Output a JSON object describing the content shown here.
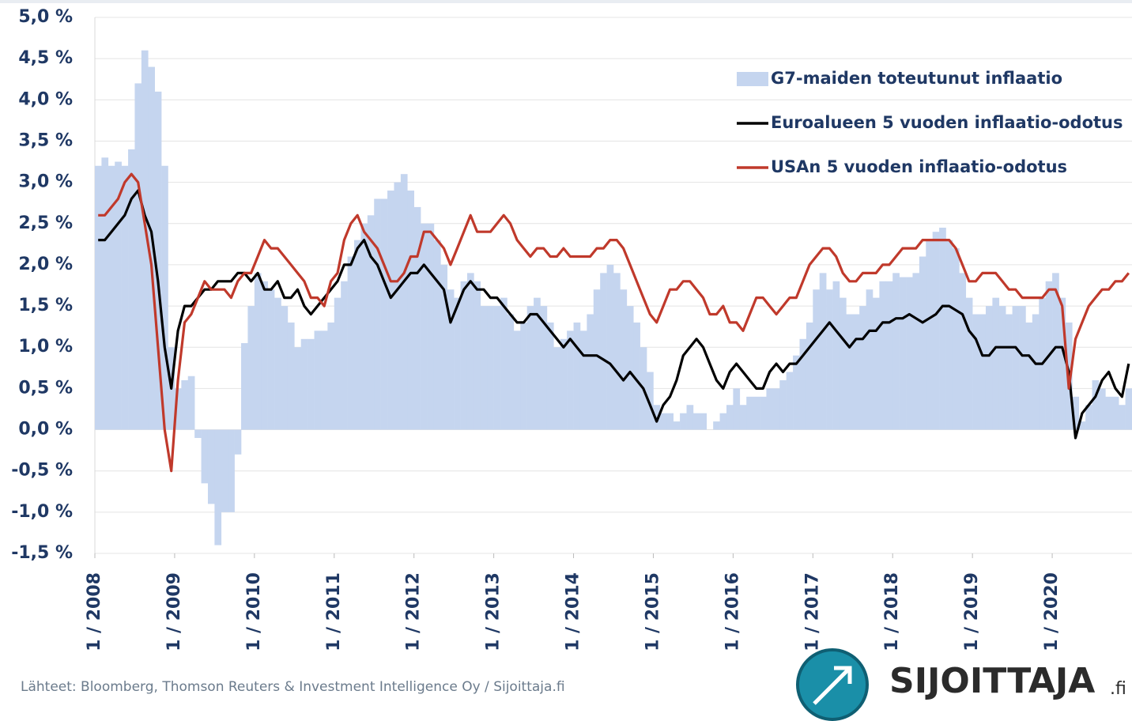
{
  "chart_data": {
    "type": "combo",
    "x": [
      "2008-01",
      "2008-02",
      "2008-03",
      "2008-04",
      "2008-05",
      "2008-06",
      "2008-07",
      "2008-08",
      "2008-09",
      "2008-10",
      "2008-11",
      "2008-12",
      "2009-01",
      "2009-02",
      "2009-03",
      "2009-04",
      "2009-05",
      "2009-06",
      "2009-07",
      "2009-08",
      "2009-09",
      "2009-10",
      "2009-11",
      "2009-12",
      "2010-01",
      "2010-02",
      "2010-03",
      "2010-04",
      "2010-05",
      "2010-06",
      "2010-07",
      "2010-08",
      "2010-09",
      "2010-10",
      "2010-11",
      "2010-12",
      "2011-01",
      "2011-02",
      "2011-03",
      "2011-04",
      "2011-05",
      "2011-06",
      "2011-07",
      "2011-08",
      "2011-09",
      "2011-10",
      "2011-11",
      "2011-12",
      "2012-01",
      "2012-02",
      "2012-03",
      "2012-04",
      "2012-05",
      "2012-06",
      "2012-07",
      "2012-08",
      "2012-09",
      "2012-10",
      "2012-11",
      "2012-12",
      "2013-01",
      "2013-02",
      "2013-03",
      "2013-04",
      "2013-05",
      "2013-06",
      "2013-07",
      "2013-08",
      "2013-09",
      "2013-10",
      "2013-11",
      "2013-12",
      "2014-01",
      "2014-02",
      "2014-03",
      "2014-04",
      "2014-05",
      "2014-06",
      "2014-07",
      "2014-08",
      "2014-09",
      "2014-10",
      "2014-11",
      "2014-12",
      "2015-01",
      "2015-02",
      "2015-03",
      "2015-04",
      "2015-05",
      "2015-06",
      "2015-07",
      "2015-08",
      "2015-09",
      "2015-10",
      "2015-11",
      "2015-12",
      "2016-01",
      "2016-02",
      "2016-03",
      "2016-04",
      "2016-05",
      "2016-06",
      "2016-07",
      "2016-08",
      "2016-09",
      "2016-10",
      "2016-11",
      "2016-12",
      "2017-01",
      "2017-02",
      "2017-03",
      "2017-04",
      "2017-05",
      "2017-06",
      "2017-07",
      "2017-08",
      "2017-09",
      "2017-10",
      "2017-11",
      "2017-12",
      "2018-01",
      "2018-02",
      "2018-03",
      "2018-04",
      "2018-05",
      "2018-06",
      "2018-07",
      "2018-08",
      "2018-09",
      "2018-10",
      "2018-11",
      "2018-12",
      "2019-01",
      "2019-02",
      "2019-03",
      "2019-04",
      "2019-05",
      "2019-06",
      "2019-07",
      "2019-08",
      "2019-09",
      "2019-10",
      "2019-11",
      "2019-12",
      "2020-01",
      "2020-02",
      "2020-03",
      "2020-04",
      "2020-05",
      "2020-06",
      "2020-07",
      "2020-08",
      "2020-09",
      "2020-10",
      "2020-11",
      "2020-12"
    ],
    "series": [
      {
        "name": "G7-maiden toteutunut inflaatio",
        "kind": "bar",
        "color": "#c5d5ef",
        "values": [
          3.2,
          3.3,
          3.2,
          3.25,
          3.2,
          3.4,
          4.2,
          4.6,
          4.4,
          4.1,
          3.2,
          1.0,
          0.5,
          0.6,
          0.65,
          -0.1,
          -0.65,
          -0.9,
          -1.4,
          -1.0,
          -1.0,
          -0.3,
          1.05,
          1.5,
          1.9,
          1.8,
          1.7,
          1.6,
          1.5,
          1.3,
          1.0,
          1.1,
          1.1,
          1.2,
          1.2,
          1.3,
          1.6,
          1.8,
          2.1,
          2.3,
          2.5,
          2.6,
          2.8,
          2.8,
          2.9,
          3.0,
          3.1,
          2.9,
          2.7,
          2.5,
          2.5,
          2.3,
          2.0,
          1.7,
          1.6,
          1.8,
          1.9,
          1.8,
          1.5,
          1.5,
          1.5,
          1.6,
          1.4,
          1.2,
          1.3,
          1.5,
          1.6,
          1.5,
          1.3,
          1.0,
          1.1,
          1.2,
          1.3,
          1.2,
          1.4,
          1.7,
          1.9,
          2.0,
          1.9,
          1.7,
          1.5,
          1.3,
          1.0,
          0.7,
          0.3,
          0.2,
          0.2,
          0.1,
          0.2,
          0.3,
          0.2,
          0.2,
          0.0,
          0.1,
          0.2,
          0.3,
          0.5,
          0.3,
          0.4,
          0.4,
          0.4,
          0.5,
          0.5,
          0.6,
          0.7,
          0.9,
          1.1,
          1.3,
          1.7,
          1.9,
          1.7,
          1.8,
          1.6,
          1.4,
          1.4,
          1.5,
          1.7,
          1.6,
          1.8,
          1.8,
          1.9,
          1.85,
          1.85,
          1.9,
          2.1,
          2.3,
          2.4,
          2.45,
          2.3,
          2.2,
          1.9,
          1.6,
          1.4,
          1.4,
          1.5,
          1.6,
          1.5,
          1.4,
          1.5,
          1.5,
          1.3,
          1.4,
          1.6,
          1.8,
          1.9,
          1.6,
          1.3,
          0.4,
          0.1,
          0.3,
          0.6,
          0.5,
          0.4,
          0.4,
          0.3,
          0.5
        ]
      },
      {
        "name": "Euroalueen 5 vuoden inflaatio-odotus",
        "kind": "line",
        "color": "#000000",
        "values": [
          2.3,
          2.3,
          2.4,
          2.5,
          2.6,
          2.8,
          2.9,
          2.6,
          2.4,
          1.8,
          1.0,
          0.5,
          1.2,
          1.5,
          1.5,
          1.6,
          1.7,
          1.7,
          1.8,
          1.8,
          1.8,
          1.9,
          1.9,
          1.8,
          1.9,
          1.7,
          1.7,
          1.8,
          1.6,
          1.6,
          1.7,
          1.5,
          1.4,
          1.5,
          1.6,
          1.7,
          1.8,
          2.0,
          2.0,
          2.2,
          2.3,
          2.1,
          2.0,
          1.8,
          1.6,
          1.7,
          1.8,
          1.9,
          1.9,
          2.0,
          1.9,
          1.8,
          1.7,
          1.3,
          1.5,
          1.7,
          1.8,
          1.7,
          1.7,
          1.6,
          1.6,
          1.5,
          1.4,
          1.3,
          1.3,
          1.4,
          1.4,
          1.3,
          1.2,
          1.1,
          1.0,
          1.1,
          1.0,
          0.9,
          0.9,
          0.9,
          0.85,
          0.8,
          0.7,
          0.6,
          0.7,
          0.6,
          0.5,
          0.3,
          0.1,
          0.3,
          0.4,
          0.6,
          0.9,
          1.0,
          1.1,
          1.0,
          0.8,
          0.6,
          0.5,
          0.7,
          0.8,
          0.7,
          0.6,
          0.5,
          0.5,
          0.7,
          0.8,
          0.7,
          0.8,
          0.8,
          0.9,
          1.0,
          1.1,
          1.2,
          1.3,
          1.2,
          1.1,
          1.0,
          1.1,
          1.1,
          1.2,
          1.2,
          1.3,
          1.3,
          1.35,
          1.35,
          1.4,
          1.35,
          1.3,
          1.35,
          1.4,
          1.5,
          1.5,
          1.45,
          1.4,
          1.2,
          1.1,
          0.9,
          0.9,
          1.0,
          1.0,
          1.0,
          1.0,
          0.9,
          0.9,
          0.8,
          0.8,
          0.9,
          1.0,
          1.0,
          0.7,
          -0.1,
          0.2,
          0.3,
          0.4,
          0.6,
          0.7,
          0.5,
          0.4,
          0.8
        ]
      },
      {
        "name": "USAn 5 vuoden inflaatio-odotus",
        "kind": "line",
        "color": "#c0392b",
        "values": [
          2.6,
          2.6,
          2.7,
          2.8,
          3.0,
          3.1,
          3.0,
          2.5,
          2.0,
          1.0,
          0.0,
          -0.5,
          0.6,
          1.3,
          1.4,
          1.6,
          1.8,
          1.7,
          1.7,
          1.7,
          1.6,
          1.8,
          1.9,
          1.9,
          2.1,
          2.3,
          2.2,
          2.2,
          2.1,
          2.0,
          1.9,
          1.8,
          1.6,
          1.6,
          1.5,
          1.8,
          1.9,
          2.3,
          2.5,
          2.6,
          2.4,
          2.3,
          2.2,
          2.0,
          1.8,
          1.8,
          1.9,
          2.1,
          2.1,
          2.4,
          2.4,
          2.3,
          2.2,
          2.0,
          2.2,
          2.4,
          2.6,
          2.4,
          2.4,
          2.4,
          2.5,
          2.6,
          2.5,
          2.3,
          2.2,
          2.1,
          2.2,
          2.2,
          2.1,
          2.1,
          2.2,
          2.1,
          2.1,
          2.1,
          2.1,
          2.2,
          2.2,
          2.3,
          2.3,
          2.2,
          2.0,
          1.8,
          1.6,
          1.4,
          1.3,
          1.5,
          1.7,
          1.7,
          1.8,
          1.8,
          1.7,
          1.6,
          1.4,
          1.4,
          1.5,
          1.3,
          1.3,
          1.2,
          1.4,
          1.6,
          1.6,
          1.5,
          1.4,
          1.5,
          1.6,
          1.6,
          1.8,
          2.0,
          2.1,
          2.2,
          2.2,
          2.1,
          1.9,
          1.8,
          1.8,
          1.9,
          1.9,
          1.9,
          2.0,
          2.0,
          2.1,
          2.2,
          2.2,
          2.2,
          2.3,
          2.3,
          2.3,
          2.3,
          2.3,
          2.2,
          2.0,
          1.8,
          1.8,
          1.9,
          1.9,
          1.9,
          1.8,
          1.7,
          1.7,
          1.6,
          1.6,
          1.6,
          1.6,
          1.7,
          1.7,
          1.5,
          0.5,
          1.1,
          1.3,
          1.5,
          1.6,
          1.7,
          1.7,
          1.8,
          1.8,
          1.9
        ]
      }
    ],
    "ylim": [
      -1.5,
      5.0
    ],
    "yticks": [
      {
        "value": 5.0,
        "label": "5,0 %"
      },
      {
        "value": 4.5,
        "label": "4,5 %"
      },
      {
        "value": 4.0,
        "label": "4,0 %"
      },
      {
        "value": 3.5,
        "label": "3,5 %"
      },
      {
        "value": 3.0,
        "label": "3,0 %"
      },
      {
        "value": 2.5,
        "label": "2,5 %"
      },
      {
        "value": 2.0,
        "label": "2,0 %"
      },
      {
        "value": 1.5,
        "label": "1,5 %"
      },
      {
        "value": 1.0,
        "label": "1,0 %"
      },
      {
        "value": 0.5,
        "label": "0,5 %"
      },
      {
        "value": 0,
        "label": "0,0 %"
      },
      {
        "value": -0.5,
        "label": "-0,5 %"
      },
      {
        "value": -1.0,
        "label": "-1,0 %"
      },
      {
        "value": -1.5,
        "label": "-1,5 %"
      }
    ],
    "xlim": [
      "2008-01",
      "2021-01"
    ],
    "xticks": [
      {
        "value": "2008-01",
        "label": "1 / 2008"
      },
      {
        "value": "2009-01",
        "label": "1 / 2009"
      },
      {
        "value": "2010-01",
        "label": "1 / 2010"
      },
      {
        "value": "2011-01",
        "label": "1 / 2011"
      },
      {
        "value": "2012-01",
        "label": "1 / 2012"
      },
      {
        "value": "2013-01",
        "label": "1 / 2013"
      },
      {
        "value": "2014-01",
        "label": "1 / 2014"
      },
      {
        "value": "2015-01",
        "label": "1 / 2015"
      },
      {
        "value": "2016-01",
        "label": "1 / 2016"
      },
      {
        "value": "2017-01",
        "label": "1 / 2017"
      },
      {
        "value": "2018-01",
        "label": "1 / 2018"
      },
      {
        "value": "2019-01",
        "label": "1 / 2019"
      },
      {
        "value": "2020-01",
        "label": "1 / 2020"
      }
    ],
    "grid": true,
    "legend": "top-right",
    "source": "Lähteet: Bloomberg, Thomson Reuters & Investment Intelligence Oy  / Sijoittaja.fi",
    "logo": {
      "name": "SIJOITTAJA",
      "suffix": ".fi"
    }
  }
}
